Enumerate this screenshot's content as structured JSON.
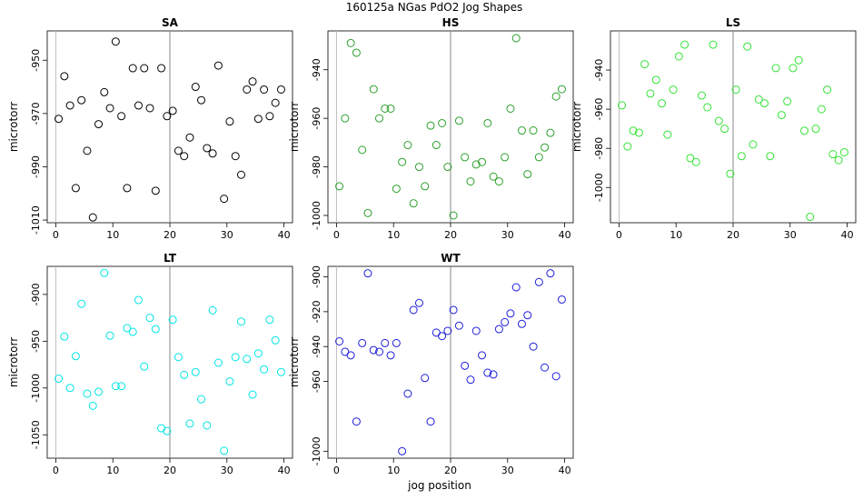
{
  "figure": {
    "title": "160125a    NGas PdO2 Jog Shapes",
    "xlabel": "jog position"
  },
  "chart_data": [
    {
      "type": "scatter",
      "title": "SA",
      "ylabel": "microtorr",
      "color": "#000000",
      "vline": 20,
      "xlim": [
        -1.5,
        41.5
      ],
      "ylim": [
        -1011,
        -939
      ],
      "xticks": [
        0,
        10,
        20,
        30,
        40
      ],
      "yticks": [
        -950,
        -970,
        -990,
        -1010
      ],
      "points": [
        [
          0.5,
          -972
        ],
        [
          1.5,
          -956
        ],
        [
          2.5,
          -967
        ],
        [
          3.5,
          -998
        ],
        [
          4.5,
          -965
        ],
        [
          5.5,
          -984
        ],
        [
          6.5,
          -1009
        ],
        [
          7.5,
          -974
        ],
        [
          8.5,
          -962
        ],
        [
          9.5,
          -968
        ],
        [
          10.5,
          -943
        ],
        [
          11.5,
          -971
        ],
        [
          12.5,
          -998
        ],
        [
          13.5,
          -953
        ],
        [
          14.5,
          -967
        ],
        [
          15.5,
          -953
        ],
        [
          16.5,
          -968
        ],
        [
          17.5,
          -999
        ],
        [
          18.5,
          -953
        ],
        [
          19.5,
          -971
        ],
        [
          20.5,
          -969
        ],
        [
          21.5,
          -984
        ],
        [
          22.5,
          -986
        ],
        [
          23.5,
          -979
        ],
        [
          24.5,
          -960
        ],
        [
          25.5,
          -965
        ],
        [
          26.5,
          -983
        ],
        [
          27.5,
          -985
        ],
        [
          28.5,
          -952
        ],
        [
          29.5,
          -1002
        ],
        [
          30.5,
          -973
        ],
        [
          31.5,
          -986
        ],
        [
          32.5,
          -993
        ],
        [
          33.5,
          -961
        ],
        [
          34.5,
          -958
        ],
        [
          35.5,
          -972
        ],
        [
          36.5,
          -961
        ],
        [
          37.5,
          -971
        ],
        [
          38.5,
          -966
        ],
        [
          39.5,
          -961
        ]
      ]
    },
    {
      "type": "scatter",
      "title": "HS",
      "ylabel": "microtorr",
      "color": "#2ca02c",
      "vline": 20,
      "xlim": [
        -1.5,
        41.5
      ],
      "ylim": [
        -1003,
        -924
      ],
      "xticks": [
        0,
        10,
        20,
        30,
        40
      ],
      "yticks": [
        -940,
        -960,
        -980,
        -1000
      ],
      "points": [
        [
          0.5,
          -988
        ],
        [
          1.5,
          -960
        ],
        [
          2.5,
          -929
        ],
        [
          3.5,
          -933
        ],
        [
          4.5,
          -973
        ],
        [
          5.5,
          -999
        ],
        [
          6.5,
          -948
        ],
        [
          7.5,
          -960
        ],
        [
          8.5,
          -956
        ],
        [
          9.5,
          -956
        ],
        [
          10.5,
          -989
        ],
        [
          11.5,
          -978
        ],
        [
          12.5,
          -971
        ],
        [
          13.5,
          -995
        ],
        [
          14.5,
          -980
        ],
        [
          15.5,
          -988
        ],
        [
          16.5,
          -963
        ],
        [
          17.5,
          -971
        ],
        [
          18.5,
          -962
        ],
        [
          19.5,
          -980
        ],
        [
          20.5,
          -1000
        ],
        [
          21.5,
          -961
        ],
        [
          22.5,
          -976
        ],
        [
          23.5,
          -986
        ],
        [
          24.5,
          -979
        ],
        [
          25.5,
          -978
        ],
        [
          26.5,
          -962
        ],
        [
          27.5,
          -984
        ],
        [
          28.5,
          -986
        ],
        [
          29.5,
          -976
        ],
        [
          30.5,
          -956
        ],
        [
          31.5,
          -927
        ],
        [
          32.5,
          -965
        ],
        [
          33.5,
          -983
        ],
        [
          34.5,
          -965
        ],
        [
          35.5,
          -976
        ],
        [
          36.5,
          -972
        ],
        [
          37.5,
          -966
        ],
        [
          38.5,
          -951
        ],
        [
          39.5,
          -948
        ]
      ]
    },
    {
      "type": "scatter",
      "title": "LS",
      "ylabel": "microtorr",
      "color": "#33e333",
      "vline": 20,
      "xlim": [
        -1.5,
        41.5
      ],
      "ylim": [
        -1018,
        -920
      ],
      "xticks": [
        0,
        10,
        20,
        30,
        40
      ],
      "yticks": [
        -940,
        -960,
        -980,
        -1000
      ],
      "points": [
        [
          0.5,
          -958
        ],
        [
          1.5,
          -979
        ],
        [
          2.5,
          -971
        ],
        [
          3.5,
          -972
        ],
        [
          4.5,
          -937
        ],
        [
          5.5,
          -952
        ],
        [
          6.5,
          -945
        ],
        [
          7.5,
          -957
        ],
        [
          8.5,
          -973
        ],
        [
          9.5,
          -950
        ],
        [
          10.5,
          -933
        ],
        [
          11.5,
          -927
        ],
        [
          12.5,
          -985
        ],
        [
          13.5,
          -987
        ],
        [
          14.5,
          -953
        ],
        [
          15.5,
          -959
        ],
        [
          16.5,
          -927
        ],
        [
          17.5,
          -966
        ],
        [
          18.5,
          -970
        ],
        [
          19.5,
          -993
        ],
        [
          20.5,
          -950
        ],
        [
          21.5,
          -984
        ],
        [
          22.5,
          -928
        ],
        [
          23.5,
          -978
        ],
        [
          24.5,
          -955
        ],
        [
          25.5,
          -957
        ],
        [
          26.5,
          -984
        ],
        [
          27.5,
          -939
        ],
        [
          28.5,
          -963
        ],
        [
          29.5,
          -956
        ],
        [
          30.5,
          -939
        ],
        [
          31.5,
          -935
        ],
        [
          32.5,
          -971
        ],
        [
          33.5,
          -1015
        ],
        [
          34.5,
          -970
        ],
        [
          35.5,
          -960
        ],
        [
          36.5,
          -950
        ],
        [
          37.5,
          -983
        ],
        [
          38.5,
          -986
        ],
        [
          39.5,
          -982
        ]
      ]
    },
    {
      "type": "scatter",
      "title": "LT",
      "ylabel": "microtorr",
      "color": "#00e5e5",
      "vline": 20,
      "xlim": [
        -1.5,
        41.5
      ],
      "ylim": [
        -1075,
        -870
      ],
      "xticks": [
        0,
        10,
        20,
        30,
        40
      ],
      "yticks": [
        -900,
        -950,
        -1000,
        -1050
      ],
      "points": [
        [
          0.5,
          -990
        ],
        [
          1.5,
          -945
        ],
        [
          2.5,
          -1000
        ],
        [
          3.5,
          -966
        ],
        [
          4.5,
          -910
        ],
        [
          5.5,
          -1006
        ],
        [
          6.5,
          -1019
        ],
        [
          7.5,
          -1004
        ],
        [
          8.5,
          -877
        ],
        [
          9.5,
          -944
        ],
        [
          10.5,
          -998
        ],
        [
          11.5,
          -998
        ],
        [
          12.5,
          -936
        ],
        [
          13.5,
          -940
        ],
        [
          14.5,
          -906
        ],
        [
          15.5,
          -977
        ],
        [
          16.5,
          -925
        ],
        [
          17.5,
          -937
        ],
        [
          18.5,
          -1043
        ],
        [
          19.5,
          -1046
        ],
        [
          20.5,
          -927
        ],
        [
          21.5,
          -967
        ],
        [
          22.5,
          -986
        ],
        [
          23.5,
          -1038
        ],
        [
          24.5,
          -983
        ],
        [
          25.5,
          -1012
        ],
        [
          26.5,
          -1040
        ],
        [
          27.5,
          -917
        ],
        [
          28.5,
          -973
        ],
        [
          29.5,
          -1067
        ],
        [
          30.5,
          -993
        ],
        [
          31.5,
          -967
        ],
        [
          32.5,
          -929
        ],
        [
          33.5,
          -969
        ],
        [
          34.5,
          -1007
        ],
        [
          35.5,
          -963
        ],
        [
          36.5,
          -980
        ],
        [
          37.5,
          -927
        ],
        [
          38.5,
          -949
        ],
        [
          39.5,
          -983
        ]
      ]
    },
    {
      "type": "scatter",
      "title": "WT",
      "ylabel": "microtorr",
      "color": "#1f1fdd",
      "vline": 20,
      "xlim": [
        -1.5,
        41.5
      ],
      "ylim": [
        -1004,
        -894
      ],
      "xticks": [
        0,
        10,
        20,
        30,
        40
      ],
      "yticks": [
        -900,
        -920,
        -940,
        -960,
        -1000
      ],
      "points": [
        [
          0.5,
          -937
        ],
        [
          1.5,
          -943
        ],
        [
          2.5,
          -945
        ],
        [
          3.5,
          -983
        ],
        [
          4.5,
          -938
        ],
        [
          5.5,
          -898
        ],
        [
          6.5,
          -942
        ],
        [
          7.5,
          -943
        ],
        [
          8.5,
          -938
        ],
        [
          9.5,
          -945
        ],
        [
          10.5,
          -938
        ],
        [
          11.5,
          -1000
        ],
        [
          12.5,
          -967
        ],
        [
          13.5,
          -919
        ],
        [
          14.5,
          -915
        ],
        [
          15.5,
          -958
        ],
        [
          16.5,
          -983
        ],
        [
          17.5,
          -932
        ],
        [
          18.5,
          -934
        ],
        [
          19.5,
          -931
        ],
        [
          20.5,
          -919
        ],
        [
          21.5,
          -928
        ],
        [
          22.5,
          -951
        ],
        [
          23.5,
          -959
        ],
        [
          24.5,
          -931
        ],
        [
          25.5,
          -945
        ],
        [
          26.5,
          -955
        ],
        [
          27.5,
          -956
        ],
        [
          28.5,
          -930
        ],
        [
          29.5,
          -926
        ],
        [
          30.5,
          -921
        ],
        [
          31.5,
          -906
        ],
        [
          32.5,
          -927
        ],
        [
          33.5,
          -922
        ],
        [
          34.5,
          -940
        ],
        [
          35.5,
          -903
        ],
        [
          36.5,
          -952
        ],
        [
          37.5,
          -898
        ],
        [
          38.5,
          -957
        ],
        [
          39.5,
          -913
        ]
      ]
    }
  ]
}
